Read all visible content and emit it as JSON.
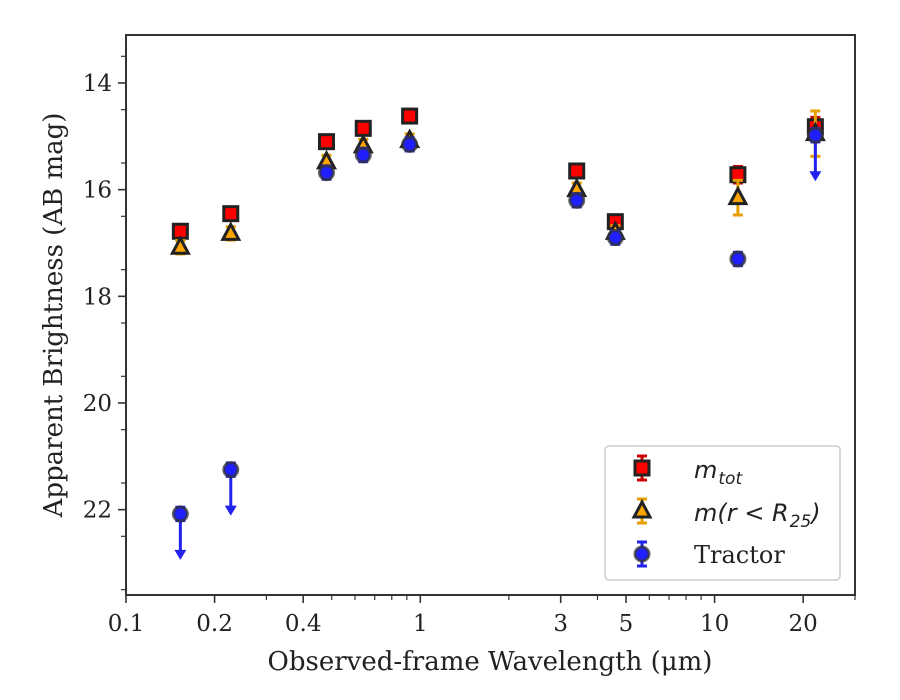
{
  "chart_data": {
    "type": "scatter",
    "xlabel": "Observed-frame Wavelength (μm)",
    "ylabel": "Apparent Brightness (AB mag)",
    "x_scale": "log",
    "y_inverted": true,
    "xlim": [
      0.1,
      30
    ],
    "ylim": [
      23.6,
      13.1
    ],
    "x_ticks": [
      {
        "value": 0.1,
        "label": "0.1"
      },
      {
        "value": 0.2,
        "label": "0.2"
      },
      {
        "value": 0.4,
        "label": "0.4"
      },
      {
        "value": 1,
        "label": "1"
      },
      {
        "value": 3,
        "label": "3"
      },
      {
        "value": 5,
        "label": "5"
      },
      {
        "value": 10,
        "label": "10"
      },
      {
        "value": 20,
        "label": "20"
      }
    ],
    "y_ticks": [
      {
        "value": 14,
        "label": "14"
      },
      {
        "value": 16,
        "label": "16"
      },
      {
        "value": 18,
        "label": "18"
      },
      {
        "value": 20,
        "label": "20"
      },
      {
        "value": 22,
        "label": "22"
      }
    ],
    "legend_position": "lower-right",
    "series": [
      {
        "name": "m_tot",
        "color": "#ff0000",
        "errorbar_color": "#cc0000",
        "marker": "square",
        "points": [
          {
            "x": 0.153,
            "y": 16.78,
            "err": 0.05
          },
          {
            "x": 0.227,
            "y": 16.45,
            "err": 0.05
          },
          {
            "x": 0.48,
            "y": 15.1,
            "err": 0.05
          },
          {
            "x": 0.64,
            "y": 14.85,
            "err": 0.05
          },
          {
            "x": 0.92,
            "y": 14.62,
            "err": 0.05
          },
          {
            "x": 3.4,
            "y": 15.65,
            "err": 0.05
          },
          {
            "x": 4.6,
            "y": 16.6,
            "err": 0.05
          },
          {
            "x": 12.0,
            "y": 15.72,
            "err": 0.08
          },
          {
            "x": 22.0,
            "y": 14.82,
            "err": 0.1
          }
        ]
      },
      {
        "name": "m(r<R25)",
        "color": "#ffa500",
        "errorbar_color": "#e6a000",
        "marker": "triangle",
        "points": [
          {
            "x": 0.153,
            "y": 17.08,
            "err": 0.05
          },
          {
            "x": 0.227,
            "y": 16.82,
            "err": 0.05
          },
          {
            "x": 0.48,
            "y": 15.48,
            "err": 0.05
          },
          {
            "x": 0.64,
            "y": 15.18,
            "err": 0.05
          },
          {
            "x": 0.92,
            "y": 15.08,
            "err": 0.05
          },
          {
            "x": 3.4,
            "y": 16.0,
            "err": 0.05
          },
          {
            "x": 4.6,
            "y": 16.8,
            "err": 0.05
          },
          {
            "x": 12.0,
            "y": 16.15,
            "err": 0.25
          },
          {
            "x": 22.0,
            "y": 14.95,
            "err": 0.35
          }
        ]
      },
      {
        "name": "Tractor",
        "color": "#1f1fff",
        "errorbar_color": "#2222ee",
        "marker": "circle",
        "points": [
          {
            "x": 0.153,
            "y": 22.08,
            "err": 0.05,
            "upper_limit": true
          },
          {
            "x": 0.227,
            "y": 21.25,
            "err": 0.05,
            "upper_limit": true
          },
          {
            "x": 0.48,
            "y": 15.68,
            "err": 0.05
          },
          {
            "x": 0.64,
            "y": 15.35,
            "err": 0.05
          },
          {
            "x": 0.92,
            "y": 15.15,
            "err": 0.05
          },
          {
            "x": 3.4,
            "y": 16.2,
            "err": 0.05
          },
          {
            "x": 4.6,
            "y": 16.9,
            "err": 0.05
          },
          {
            "x": 12.0,
            "y": 17.3,
            "err": 0.05
          },
          {
            "x": 22.0,
            "y": 14.98,
            "err": 0.05,
            "upper_limit": true
          }
        ]
      }
    ]
  }
}
